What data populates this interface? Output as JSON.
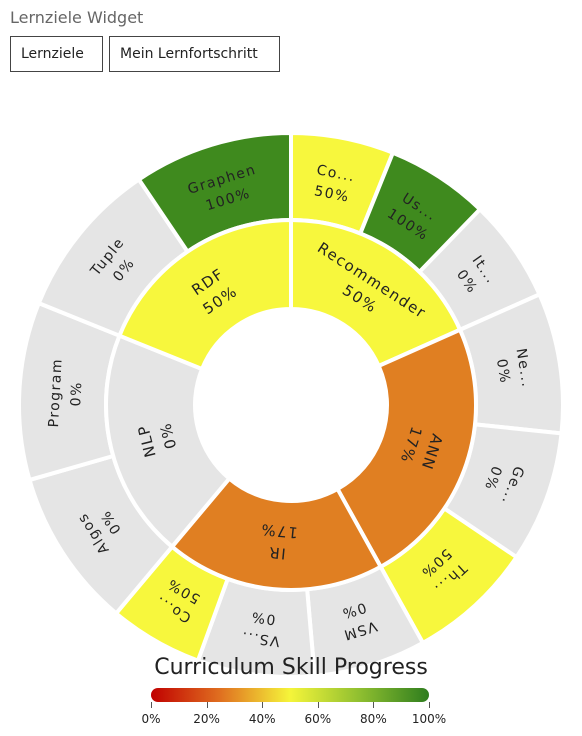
{
  "widget": {
    "title": "Lernziele Widget"
  },
  "tabs": [
    {
      "label": "Lernziele"
    },
    {
      "label": "Mein Lernfortschritt"
    }
  ],
  "colors": {
    "gradient": [
      "#c00000",
      "#e07020",
      "#f5f53a",
      "#8fbf30",
      "#2e7d1e"
    ],
    "progress_0": "#e5e5e5",
    "progress_17": "#e07f22",
    "progress_50": "#f7f73d",
    "progress_100": "#3f8a1e",
    "separator": "#ffffff"
  },
  "colorbar": {
    "ticks": [
      "0%",
      "20%",
      "40%",
      "60%",
      "80%",
      "100%"
    ]
  },
  "chart_data": {
    "type": "sunburst",
    "title": "Curriculum Skill Progress",
    "value_unit": "%",
    "inner": [
      {
        "name": "Recommender",
        "value": "50%",
        "progress": 50
      },
      {
        "name": "ANN",
        "value": "17%",
        "progress": 17
      },
      {
        "name": "IR",
        "value": "17%",
        "progress": 17
      },
      {
        "name": "NLP",
        "value": "0%",
        "progress": 0
      },
      {
        "name": "RDF",
        "value": "50%",
        "progress": 50
      }
    ],
    "outer": [
      {
        "name": "Co...",
        "value": "50%",
        "progress": 50,
        "parent": "Recommender"
      },
      {
        "name": "Us...",
        "value": "100%",
        "progress": 100,
        "parent": "Recommender"
      },
      {
        "name": "It...",
        "value": "0%",
        "progress": 0,
        "parent": "Recommender"
      },
      {
        "name": "Ne...",
        "value": "0%",
        "progress": 0,
        "parent": "ANN"
      },
      {
        "name": "Ge...",
        "value": "0%",
        "progress": 0,
        "parent": "ANN"
      },
      {
        "name": "Th...",
        "value": "50%",
        "progress": 50,
        "parent": "ANN"
      },
      {
        "name": "VSM",
        "value": "0%",
        "progress": 0,
        "parent": "IR"
      },
      {
        "name": "VS...",
        "value": "0%",
        "progress": 0,
        "parent": "IR"
      },
      {
        "name": "Co...",
        "value": "50%",
        "progress": 50,
        "parent": "IR"
      },
      {
        "name": "Algos",
        "value": "0%",
        "progress": 0,
        "parent": "NLP"
      },
      {
        "name": "Program",
        "value": "0%",
        "progress": 0,
        "parent": "NLP"
      },
      {
        "name": "Tuple",
        "value": "0%",
        "progress": 0,
        "parent": "RDF"
      },
      {
        "name": "Graphen",
        "value": "100%",
        "progress": 100,
        "parent": "RDF"
      }
    ]
  }
}
